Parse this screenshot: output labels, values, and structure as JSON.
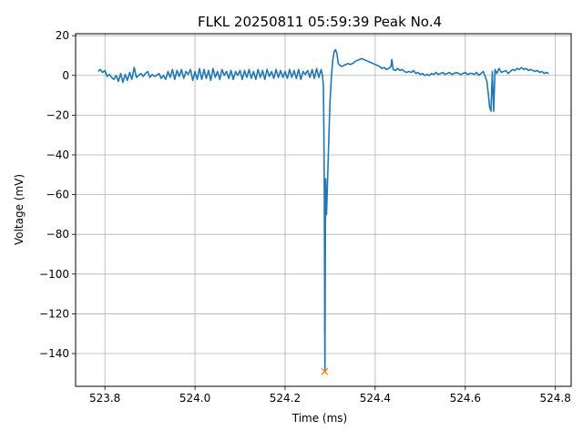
{
  "chart_data": {
    "type": "line",
    "title": "FLKL 20250811 05:59:39 Peak No.4",
    "xlabel": "Time (ms)",
    "ylabel": "Voltage (mV)",
    "xlim": [
      523.735,
      524.835
    ],
    "ylim": [
      -156.5,
      21.0
    ],
    "grid": true,
    "xticks": [
      523.8,
      524.0,
      524.2,
      524.4,
      524.6,
      524.8
    ],
    "xtick_labels": [
      "523.8",
      "524.0",
      "524.2",
      "524.4",
      "524.6",
      "524.8"
    ],
    "yticks": [
      20,
      0,
      -20,
      -40,
      -60,
      -80,
      -100,
      -120,
      -140
    ],
    "ytick_labels": [
      "20",
      "0",
      "−20",
      "−40",
      "−60",
      "−80",
      "−100",
      "−120",
      "−140"
    ],
    "series": [
      {
        "color": "#1f77b4",
        "x": [
          523.785,
          523.79,
          523.795,
          523.8,
          523.805,
          523.81,
          523.815,
          523.82,
          523.825,
          523.83,
          523.835,
          523.84,
          523.845,
          523.85,
          523.855,
          523.86,
          523.865,
          523.87,
          523.875,
          523.88,
          523.885,
          523.89,
          523.895,
          523.9,
          523.905,
          523.91,
          523.915,
          523.92,
          523.925,
          523.93,
          523.935,
          523.94,
          523.945,
          523.95,
          523.955,
          523.96,
          523.965,
          523.97,
          523.975,
          523.98,
          523.985,
          523.99,
          523.995,
          524.0,
          524.005,
          524.01,
          524.015,
          524.02,
          524.025,
          524.03,
          524.035,
          524.04,
          524.045,
          524.05,
          524.055,
          524.06,
          524.065,
          524.07,
          524.075,
          524.08,
          524.085,
          524.09,
          524.095,
          524.1,
          524.105,
          524.11,
          524.115,
          524.12,
          524.125,
          524.13,
          524.135,
          524.14,
          524.145,
          524.15,
          524.155,
          524.16,
          524.165,
          524.17,
          524.175,
          524.18,
          524.185,
          524.19,
          524.195,
          524.2,
          524.205,
          524.21,
          524.215,
          524.22,
          524.225,
          524.23,
          524.235,
          524.24,
          524.245,
          524.25,
          524.255,
          524.26,
          524.265,
          524.27,
          524.275,
          524.28,
          524.283,
          524.285,
          524.286,
          524.287,
          524.2875,
          524.288,
          524.2885,
          524.289,
          524.2895,
          524.29,
          524.291,
          524.292,
          524.294,
          524.296,
          524.298,
          524.3,
          524.303,
          524.306,
          524.309,
          524.312,
          524.315,
          524.318,
          524.322,
          524.326,
          524.33,
          524.335,
          524.34,
          524.345,
          524.35,
          524.355,
          524.36,
          524.365,
          524.37,
          524.375,
          524.38,
          524.385,
          524.39,
          524.395,
          524.4,
          524.405,
          524.41,
          524.415,
          524.42,
          524.425,
          524.43,
          524.435,
          524.437,
          524.44,
          524.445,
          524.45,
          524.455,
          524.46,
          524.465,
          524.47,
          524.475,
          524.48,
          524.485,
          524.49,
          524.495,
          524.5,
          524.505,
          524.51,
          524.515,
          524.52,
          524.525,
          524.53,
          524.535,
          524.54,
          524.545,
          524.55,
          524.555,
          524.56,
          524.565,
          524.57,
          524.575,
          524.58,
          524.585,
          524.59,
          524.595,
          524.6,
          524.605,
          524.61,
          524.615,
          524.62,
          524.625,
          524.63,
          524.635,
          524.64,
          524.644,
          524.648,
          524.651,
          524.654,
          524.657,
          524.66,
          524.663,
          524.666,
          524.67,
          524.675,
          524.68,
          524.685,
          524.69,
          524.695,
          524.7,
          524.705,
          524.71,
          524.715,
          524.72,
          524.725,
          524.73,
          524.735,
          524.74,
          524.745,
          524.75,
          524.755,
          524.76,
          524.765,
          524.77,
          524.775,
          524.78,
          524.785
        ],
        "y": [
          2.0,
          3.0,
          1.5,
          2.5,
          -0.5,
          0.5,
          -1.0,
          -2.0,
          0.0,
          -3.0,
          1.0,
          -3.5,
          0.5,
          -2.5,
          1.5,
          -2.0,
          4.0,
          -1.0,
          0.0,
          1.0,
          -0.5,
          1.0,
          2.0,
          -1.0,
          0.5,
          -0.5,
          0.0,
          1.0,
          -1.5,
          0.0,
          -2.0,
          2.0,
          -1.0,
          3.0,
          -2.0,
          2.5,
          -0.5,
          3.0,
          -1.5,
          2.0,
          0.5,
          3.0,
          -2.5,
          2.0,
          -2.0,
          3.5,
          -2.0,
          3.0,
          -1.5,
          2.5,
          -2.5,
          3.5,
          -1.0,
          2.0,
          -2.0,
          3.0,
          0.0,
          2.0,
          -1.5,
          2.5,
          -2.0,
          2.0,
          0.0,
          2.5,
          -2.0,
          2.5,
          -1.0,
          3.0,
          -1.5,
          2.0,
          -2.0,
          3.0,
          -1.0,
          2.5,
          -2.0,
          3.0,
          -0.5,
          2.0,
          -1.5,
          3.0,
          -1.0,
          2.5,
          -1.0,
          2.0,
          -1.5,
          3.0,
          -1.0,
          2.5,
          -1.5,
          3.0,
          -2.0,
          2.0,
          0.5,
          2.5,
          -1.0,
          3.0,
          -1.5,
          3.5,
          -1.0,
          3.0,
          0.0,
          -5.0,
          -25.0,
          -55.0,
          -90.0,
          -130.0,
          -149.0,
          -110.0,
          -70.0,
          -52.0,
          -63.0,
          -70.0,
          -55.0,
          -40.0,
          -25.0,
          -12.0,
          0.0,
          8.0,
          12.0,
          13.0,
          11.0,
          6.0,
          5.0,
          4.5,
          5.0,
          5.5,
          6.0,
          5.5,
          6.0,
          7.0,
          7.5,
          8.0,
          8.5,
          8.0,
          7.5,
          7.0,
          6.5,
          6.0,
          5.5,
          5.0,
          4.5,
          3.5,
          4.0,
          3.0,
          3.5,
          4.5,
          8.0,
          3.0,
          2.5,
          3.5,
          2.5,
          3.0,
          2.0,
          1.5,
          2.0,
          1.5,
          2.5,
          1.0,
          1.5,
          0.5,
          1.0,
          0.0,
          0.5,
          0.0,
          1.0,
          0.5,
          1.5,
          0.5,
          1.0,
          1.5,
          0.5,
          1.0,
          1.5,
          0.5,
          1.0,
          1.5,
          1.0,
          0.5,
          1.0,
          1.5,
          0.5,
          1.0,
          1.0,
          0.5,
          1.5,
          0.0,
          1.0,
          2.0,
          -0.5,
          -3.0,
          -9.0,
          -16.0,
          -18.0,
          2.0,
          -18.0,
          3.0,
          1.0,
          3.5,
          1.5,
          2.0,
          2.5,
          1.0,
          2.0,
          3.0,
          2.5,
          3.5,
          3.0,
          4.0,
          3.0,
          3.5,
          2.5,
          3.0,
          2.5,
          2.0,
          2.5,
          1.5,
          2.0,
          1.0,
          1.5,
          1.0
        ]
      }
    ],
    "markers": [
      {
        "x": 524.288,
        "y": -149.0,
        "symbol": "x",
        "color": "#ff7f0e"
      }
    ]
  }
}
